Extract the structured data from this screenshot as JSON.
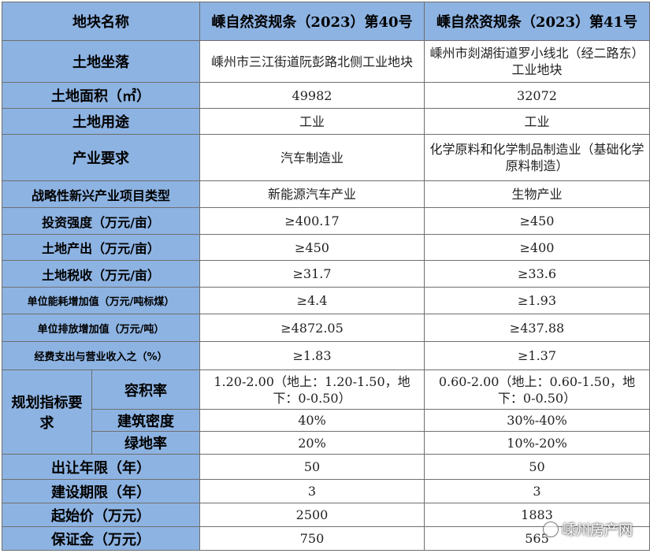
{
  "header": {
    "label": "地块名称",
    "col1": "嵊自然资规条（2023）第40号",
    "col2": "嵊自然资规条（2023）第41号"
  },
  "rows": {
    "location": {
      "label": "土地坐落",
      "v1": "嵊州市三江街道阮彭路北侧工业地块",
      "v2": "嵊州市剡湖街道罗小线北（经二路东）工业地块"
    },
    "area": {
      "label": "土地面积（㎡）",
      "v1": "49982",
      "v2": "32072"
    },
    "use": {
      "label": "土地用途",
      "v1": "工业",
      "v2": "工业"
    },
    "industry": {
      "label": "产业要求",
      "v1": "汽车制造业",
      "v2": "化学原料和化学制品制造业（基础化学原料制造）"
    },
    "strategic": {
      "label": "战略性新兴产业项目类型",
      "v1": "新能源汽车产业",
      "v2": "生物产业"
    },
    "invest": {
      "label": "投资强度（万元/亩）",
      "v1": "≥400.17",
      "v2": "≥450"
    },
    "output": {
      "label": "土地产出（万元/亩）",
      "v1": "≥450",
      "v2": "≥400"
    },
    "tax": {
      "label": "土地税收（万元/亩）",
      "v1": "≥31.7",
      "v2": "≥33.6"
    },
    "energy": {
      "label": "单位能耗增加值（万元/吨标煤）",
      "v1": "≥4.4",
      "v2": "≥1.93"
    },
    "emission": {
      "label": "单位排放增加值（万元/吨）",
      "v1": "≥4872.05",
      "v2": "≥437.88"
    },
    "rnd": {
      "label": "经费支出与营业收入之（%）",
      "v1": "≥1.83",
      "v2": "≥1.37"
    },
    "planning": {
      "label": "规划指标要求",
      "far": {
        "label": "容积率",
        "v1": "1.20-2.00（地上：1.20-1.50，地下：0-0.50）",
        "v2": "0.60-2.00（地上：0.60-1.50，地下：0-0.50）"
      },
      "density": {
        "label": "建筑密度",
        "v1": "40%",
        "v2": "30%-40%"
      },
      "green": {
        "label": "绿地率",
        "v1": "20%",
        "v2": "10%-20%"
      }
    },
    "term": {
      "label": "出让年限（年）",
      "v1": "50",
      "v2": "50"
    },
    "build": {
      "label": "建设期限（年）",
      "v1": "3",
      "v2": "3"
    },
    "price": {
      "label": "起始价（万元）",
      "v1": "2500",
      "v2": "1883"
    },
    "deposit": {
      "label": "保证金（万元）",
      "v1": "750",
      "v2": "565"
    }
  },
  "watermark": "嵊州房产网"
}
